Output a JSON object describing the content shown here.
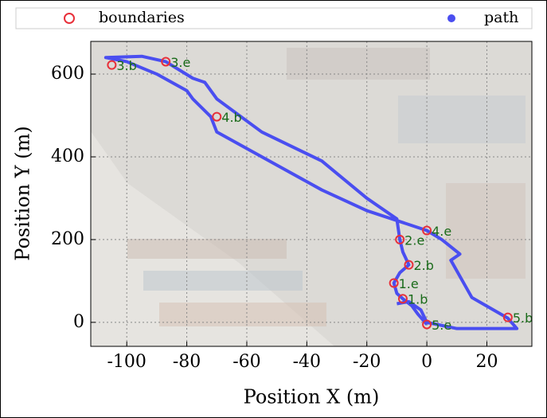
{
  "chart_data": {
    "type": "line",
    "xlabel": "Position X (m)",
    "ylabel": "Position Y (m)",
    "xlim": [
      -112,
      35
    ],
    "ylim": [
      -58,
      679
    ],
    "xticks": [
      -100,
      -80,
      -60,
      -40,
      -20,
      0,
      20
    ],
    "yticks": [
      0,
      200,
      400,
      600
    ],
    "grid": true,
    "legend": "top",
    "series": [
      {
        "name": "boundaries",
        "color": "#e8303a",
        "marker": "hollow-circle",
        "x": [
          -105,
          -87,
          -70,
          0,
          -9,
          -6,
          -11,
          -8,
          0,
          27
        ],
        "y": [
          622,
          630,
          497,
          222,
          200,
          139,
          95,
          57,
          -5,
          12
        ],
        "labels": [
          "3.b",
          "3.e",
          "4.b",
          "4.e",
          "2.e",
          "2.b",
          "1.e",
          "1.b",
          "5.e",
          "5.b"
        ]
      },
      {
        "name": "path",
        "color": "#4a4ef0",
        "marker": "line",
        "x": [
          -10,
          -6,
          -2,
          0,
          10,
          30,
          27,
          15,
          8,
          11,
          5,
          0,
          -20,
          -35,
          -50,
          -70,
          -72,
          -78,
          -80,
          -90,
          -100,
          -107,
          -95,
          -87,
          -78,
          -74,
          -70,
          -55,
          -35,
          -30,
          -20,
          -10,
          -9,
          -8,
          -6,
          -9,
          -11,
          -10,
          -8,
          -5,
          -3,
          0
        ],
        "y": [
          45,
          50,
          30,
          0,
          -15,
          -15,
          10,
          60,
          150,
          165,
          200,
          222,
          270,
          320,
          380,
          460,
          497,
          540,
          560,
          600,
          630,
          640,
          643,
          630,
          590,
          580,
          540,
          460,
          390,
          360,
          300,
          250,
          200,
          170,
          139,
          120,
          95,
          70,
          57,
          40,
          20,
          -5
        ]
      }
    ]
  }
}
